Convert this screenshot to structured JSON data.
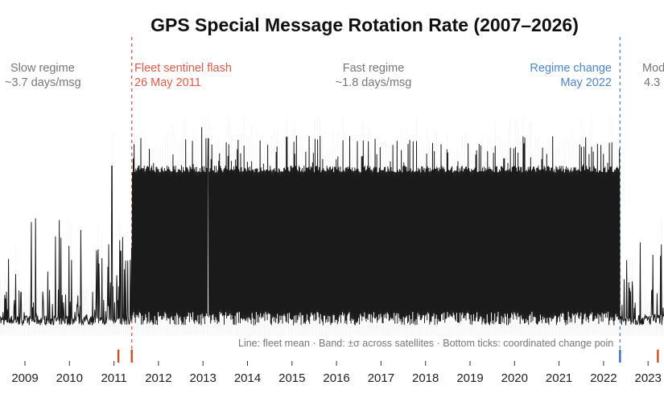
{
  "chart_data": {
    "type": "line",
    "title": "GPS Special Message Rotation Rate (2007–2026)",
    "xlabel": "",
    "ylabel": "",
    "x_tick_labels": [
      "2009",
      "2010",
      "2011",
      "2012",
      "2013",
      "2014",
      "2015",
      "2016",
      "2017",
      "2018",
      "2019",
      "2020",
      "2021",
      "2022",
      "2023"
    ],
    "x_visible_range": [
      2008.45,
      2023.55
    ],
    "ylim": [
      0,
      8
    ],
    "grid": false,
    "regimes": [
      {
        "name": "Slow regime",
        "rate": "~3.7 days/msg",
        "x_start": 2008.45,
        "x_end": 2011.42,
        "color": "#777777"
      },
      {
        "name": "Fast regime",
        "rate": "~1.8 days/msg",
        "x_start": 2011.42,
        "x_end": 2022.37,
        "color": "#777777"
      },
      {
        "name": "Mod",
        "rate": "4.3",
        "x_start": 2022.37,
        "x_end": 2023.55,
        "color": "#777777"
      }
    ],
    "events": [
      {
        "label": "Fleet sentinel flash",
        "date": "26 May 2011",
        "x": 2011.4,
        "color": "#e05a47"
      },
      {
        "label": "Regime change",
        "date": "May 2022",
        "x": 2022.37,
        "color": "#4a86d4"
      }
    ],
    "change_point_ticks": [
      {
        "x": 2011.1,
        "color": "#c8501e"
      },
      {
        "x": 2011.4,
        "color": "#c8501e"
      },
      {
        "x": 2022.37,
        "color": "#2f6fc0"
      },
      {
        "x": 2023.22,
        "color": "#c8501e"
      }
    ],
    "series": [
      {
        "name": "fleet mean",
        "kind": "line",
        "color": "#1a1a1a",
        "baseline": 0.4,
        "fast_high": 6.2,
        "slow_typical_peak": 2.0,
        "max_peak": 7.6,
        "post_change_peak": 2.6
      },
      {
        "name": "±σ across satellites",
        "kind": "band",
        "color": "#d8d8d8"
      }
    ],
    "footnote": "Line: fleet mean  ·  Band: ±σ across satellites  ·  Bottom ticks: coordinated change poin"
  }
}
